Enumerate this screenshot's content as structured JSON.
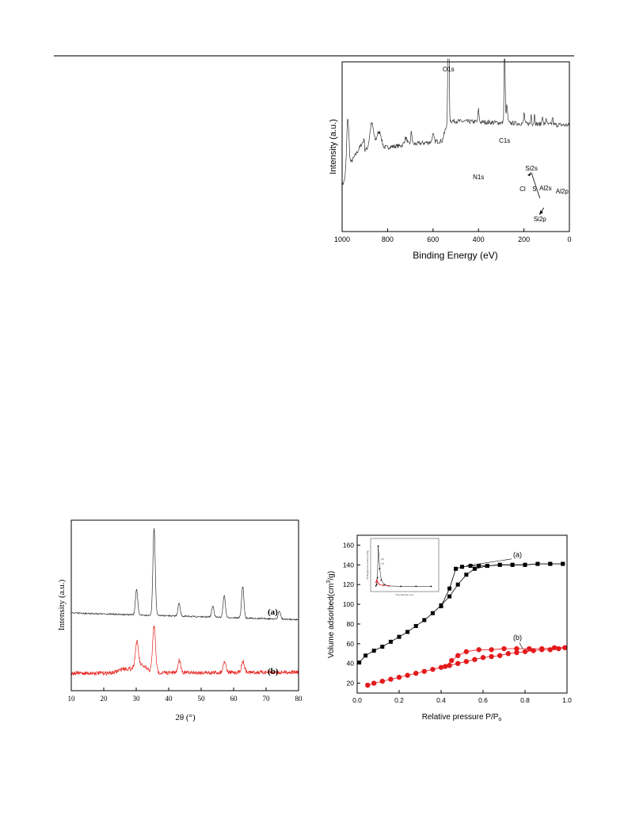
{
  "colors": {
    "axis": "#000000",
    "trace_black": "#333333",
    "trace_red": "#e8231f",
    "marker_red": "#e31a1c"
  },
  "figures": [
    {
      "chart_data": {
        "type": "line",
        "xlabel": "Binding Energy (eV)",
        "ylabel": "Intensity (a.u.)",
        "xlim": [
          1000,
          0
        ],
        "x_reversed": true,
        "xticks": [
          "1000",
          "800",
          "600",
          "400",
          "200",
          "0"
        ],
        "yticks_shown": false,
        "peaks": [
          {
            "label": "O1s",
            "x": 532
          },
          {
            "label": "N1s",
            "x": 400
          },
          {
            "label": "C1s",
            "x": 285
          },
          {
            "label": "Cl",
            "x": 199
          },
          {
            "label": "S",
            "x": 168
          },
          {
            "label": "Al2s",
            "x": 119
          },
          {
            "label": "Si2s",
            "x": 153
          },
          {
            "label": "Al2p",
            "x": 74
          },
          {
            "label": "Si2p",
            "x": 102
          }
        ]
      }
    },
    {
      "chart_data": {
        "type": "line",
        "xlabel": "2θ (°)",
        "ylabel": "Intensity (a.u.)",
        "xlim": [
          10,
          80
        ],
        "xticks": [
          "10",
          "20",
          "30",
          "40",
          "50",
          "60",
          "70",
          "80"
        ],
        "yticks_shown": false,
        "series": [
          {
            "name": "(a)",
            "color": "#333333",
            "peaks_2theta": [
              30.1,
              35.5,
              43.2,
              53.6,
              57.1,
              62.8,
              74.1
            ]
          },
          {
            "name": "(b)",
            "color": "#e8231f",
            "peaks_2theta": [
              30.2,
              35.5,
              43.3,
              57.2,
              62.9
            ]
          }
        ]
      }
    },
    {
      "chart_data": {
        "type": "scatter",
        "xlabel": "Relative pressure P/P",
        "xlabel_sub": "o",
        "ylabel": "Volume adsorbed(cm",
        "ylabel_sup": "3",
        "ylabel_end": "/g)",
        "xlim": [
          0.0,
          1.0
        ],
        "ylim": [
          10,
          170
        ],
        "xticks": [
          "0.0",
          "0.2",
          "0.4",
          "0.6",
          "0.8",
          "1.0"
        ],
        "yticks": [
          "20",
          "40",
          "60",
          "80",
          "100",
          "120",
          "140",
          "160"
        ],
        "series": [
          {
            "name": "(a)",
            "marker": "square",
            "color": "#000000",
            "adsorption": [
              [
                0.01,
                41
              ],
              [
                0.04,
                48
              ],
              [
                0.08,
                53
              ],
              [
                0.12,
                57
              ],
              [
                0.16,
                62
              ],
              [
                0.2,
                67
              ],
              [
                0.24,
                72
              ],
              [
                0.28,
                78
              ],
              [
                0.32,
                84
              ],
              [
                0.36,
                91
              ],
              [
                0.4,
                99
              ],
              [
                0.44,
                108
              ],
              [
                0.48,
                120
              ],
              [
                0.52,
                130
              ],
              [
                0.56,
                136
              ],
              [
                0.62,
                139
              ],
              [
                0.68,
                140
              ],
              [
                0.74,
                140
              ],
              [
                0.8,
                140
              ],
              [
                0.86,
                141
              ],
              [
                0.92,
                141
              ],
              [
                0.98,
                141
              ]
            ],
            "desorption": [
              [
                0.98,
                141
              ],
              [
                0.92,
                141
              ],
              [
                0.86,
                141
              ],
              [
                0.8,
                140
              ],
              [
                0.74,
                140
              ],
              [
                0.68,
                140
              ],
              [
                0.62,
                139
              ],
              [
                0.58,
                139
              ],
              [
                0.54,
                139
              ],
              [
                0.5,
                138
              ],
              [
                0.47,
                136
              ],
              [
                0.44,
                116
              ],
              [
                0.4,
                98
              ]
            ]
          },
          {
            "name": "(b)",
            "marker": "circle",
            "color": "#e31a1c",
            "adsorption": [
              [
                0.05,
                18
              ],
              [
                0.08,
                20
              ],
              [
                0.12,
                22
              ],
              [
                0.16,
                24
              ],
              [
                0.2,
                26
              ],
              [
                0.24,
                28
              ],
              [
                0.28,
                30
              ],
              [
                0.32,
                32
              ],
              [
                0.36,
                34
              ],
              [
                0.4,
                36
              ],
              [
                0.44,
                38
              ],
              [
                0.48,
                40
              ],
              [
                0.52,
                42
              ],
              [
                0.56,
                44
              ],
              [
                0.6,
                46
              ],
              [
                0.64,
                47
              ],
              [
                0.68,
                48
              ],
              [
                0.72,
                50
              ],
              [
                0.76,
                51
              ],
              [
                0.8,
                52
              ],
              [
                0.84,
                53
              ],
              [
                0.88,
                54
              ],
              [
                0.92,
                54
              ],
              [
                0.96,
                55
              ],
              [
                0.99,
                56
              ]
            ],
            "desorption": [
              [
                0.99,
                56
              ],
              [
                0.94,
                56
              ],
              [
                0.88,
                55
              ],
              [
                0.82,
                55
              ],
              [
                0.76,
                55
              ],
              [
                0.7,
                55
              ],
              [
                0.64,
                54
              ],
              [
                0.58,
                54
              ],
              [
                0.52,
                52
              ],
              [
                0.48,
                48
              ],
              [
                0.45,
                43
              ],
              [
                0.42,
                37
              ]
            ]
          }
        ],
        "inset": {
          "type": "scatter",
          "xlabel": "Pore Diameter (nm)",
          "ylabel": "dV/dlog(D) Pore Volume (cm³/g)",
          "series": [
            {
              "name": "(a)",
              "color": "#000000",
              "points": [
                [
                  3.5,
                  0.02
                ],
                [
                  4,
                  0.05
                ],
                [
                  4.5,
                  0.2
                ],
                [
                  5,
                  0.9
                ],
                [
                  6,
                  0.4
                ],
                [
                  7,
                  0.15
                ],
                [
                  9,
                  0.05
                ],
                [
                  12,
                  0.02
                ],
                [
                  20,
                  0.01
                ],
                [
                  30,
                  0.01
                ],
                [
                  40,
                  0.01
                ]
              ]
            },
            {
              "name": "(b)",
              "color": "#e31a1c",
              "points": [
                [
                  3.5,
                  0.1
                ],
                [
                  4,
                  0.15
                ],
                [
                  4.5,
                  0.12
                ],
                [
                  5,
                  0.08
                ],
                [
                  6,
                  0.05
                ],
                [
                  8,
                  0.03
                ],
                [
                  12,
                  0.02
                ]
              ]
            }
          ]
        }
      }
    }
  ]
}
